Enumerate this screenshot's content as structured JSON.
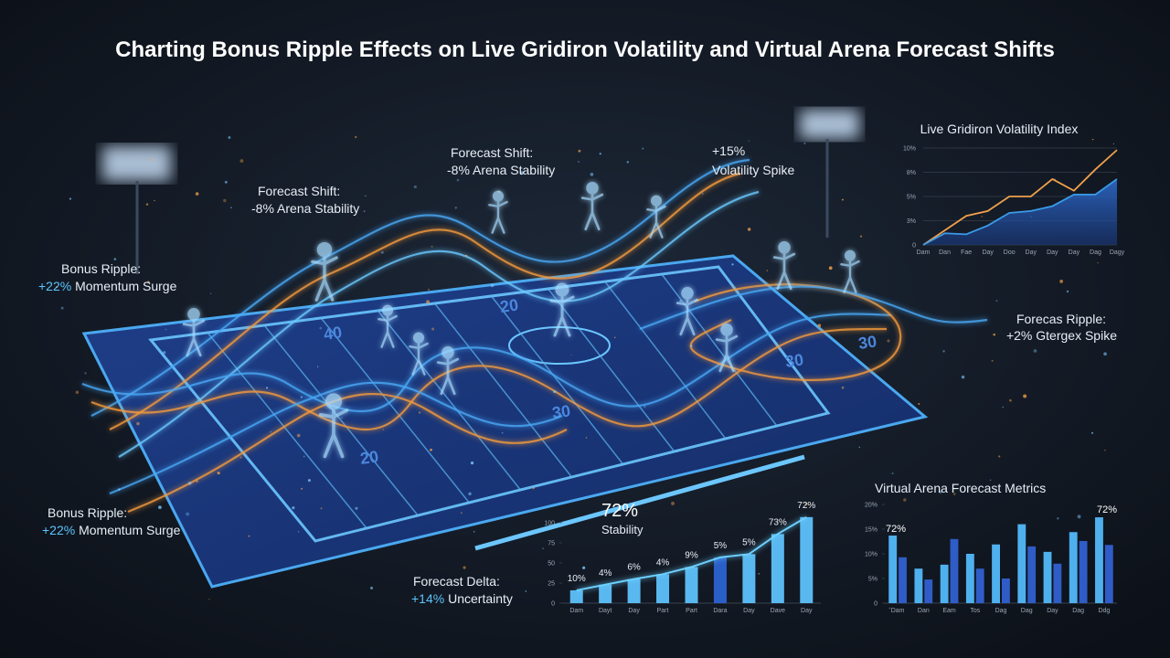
{
  "title": "Charting Bonus Ripple Effects on Live Gridiron Volatility and Virtual Arena Forecast Shifts",
  "annotations": [
    {
      "heading": "Bonus Ripple:",
      "highlight": "+22%",
      "detail": "Momentum Surge"
    },
    {
      "heading": "Forecast Shift:",
      "highlight": "-8%",
      "detail": "Arena Stability"
    },
    {
      "heading": "Forecast Shift:",
      "highlight": "-8%",
      "detail": "Arena Stability"
    },
    {
      "heading": "+15%",
      "detail": "Volatility Spike"
    },
    {
      "heading": "Forecas Ripple:",
      "highlight": "+2%",
      "detail": "Gtergex Spike"
    },
    {
      "heading": "Bonus Ripple:",
      "highlight": "+22%",
      "detail": "Momentum Surge"
    },
    {
      "heading": "Forecast Delta:",
      "highlight": "+14%",
      "detail": "Uncertainty"
    }
  ],
  "field": {
    "yard_labels": [
      "40",
      "20",
      "30",
      "30",
      "20",
      "30"
    ]
  },
  "chart_data": [
    {
      "type": "line",
      "title": "Live Gridiron Volatility Index",
      "categories": [
        "Dam",
        "Dan",
        "Fae",
        "Day",
        "Doo",
        "Day",
        "Day",
        "Day",
        "Dag",
        "Dagy"
      ],
      "series": [
        {
          "color": "#f0a04a",
          "values": [
            0,
            1.5,
            3,
            3.5,
            5,
            5,
            6.8,
            5.6,
            7.8,
            9.8
          ]
        },
        {
          "color": "#3a9be8",
          "area": true,
          "values": [
            0,
            1.2,
            1.1,
            2,
            3.3,
            3.5,
            4,
            5.2,
            5.2,
            6.8
          ]
        }
      ],
      "ylim": [
        0,
        10
      ],
      "yticks": [
        0,
        {
          "value": 2.5,
          "label": "3%"
        },
        {
          "value": 5,
          "label": "5%"
        },
        {
          "value": 7.5,
          "label": "8%"
        },
        {
          "value": 10,
          "label": "10%"
        }
      ],
      "grid": true
    },
    {
      "type": "bar",
      "headline": "72%",
      "subtitle": "Stability",
      "categories": [
        "Dam",
        "Dayt",
        "Day",
        "Part",
        "Part",
        "Dara",
        "Day",
        "Dave",
        "Day"
      ],
      "values": [
        16,
        23,
        30,
        36,
        45,
        57,
        61,
        86,
        107
      ],
      "colors": [
        "#5ab8f0",
        "#5ab8f0",
        "#5ab8f0",
        "#5ab8f0",
        "#5ab8f0",
        "#2a5fc8",
        "#5ab8f0",
        "#5ab8f0",
        "#5ab8f0"
      ],
      "point_labels": [
        "10%",
        "4%",
        "6%",
        "4%",
        "9%",
        "5%",
        "5%",
        "73%",
        "72%"
      ],
      "line_overlay": true,
      "ylim": [
        0,
        110
      ],
      "yticks": [
        0,
        25,
        50,
        75,
        100
      ]
    },
    {
      "type": "bar",
      "title": "Virtual Arena Forecast Metrics",
      "categories": [
        "Dam",
        "Dan",
        "Eam",
        "Tos",
        "Dag",
        "Dag",
        "Day",
        "Dag",
        "Ddg"
      ],
      "series": [
        {
          "color": "#4fb0ee",
          "values": [
            13.7,
            7,
            7.8,
            10,
            11.9,
            16,
            10.4,
            14.4,
            17.4
          ]
        },
        {
          "color": "#2f5cc6",
          "values": [
            9.3,
            4.8,
            13,
            7,
            5,
            11.5,
            8,
            12.6,
            11.8
          ]
        }
      ],
      "annotations": [
        "72%",
        "72%"
      ],
      "ylim": [
        0,
        20
      ],
      "yticks": [
        0,
        {
          "value": 5,
          "label": "5%"
        },
        {
          "value": 10,
          "label": "10%"
        },
        {
          "value": 15,
          "label": "15%"
        },
        {
          "value": 20,
          "label": "20%"
        }
      ]
    }
  ]
}
